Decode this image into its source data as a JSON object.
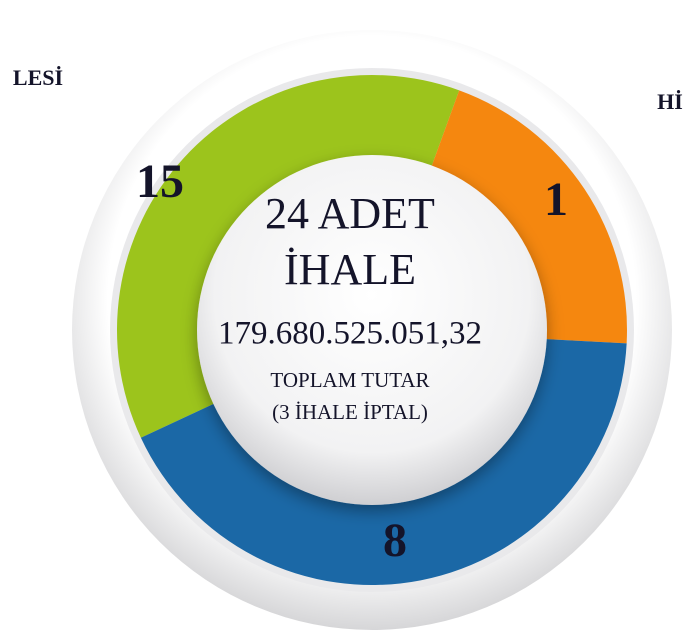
{
  "side_labels": {
    "left": "LESİ",
    "right": "Hİ"
  },
  "segments": [
    {
      "label": "15"
    },
    {
      "label": "1"
    },
    {
      "label": "8"
    }
  ],
  "center": {
    "line1": "24 ADET",
    "line2": "İHALE",
    "amount": "179.680.525.051,32",
    "caption": "TOPLAM TUTAR",
    "note": "(3 İHALE İPTAL)"
  }
}
